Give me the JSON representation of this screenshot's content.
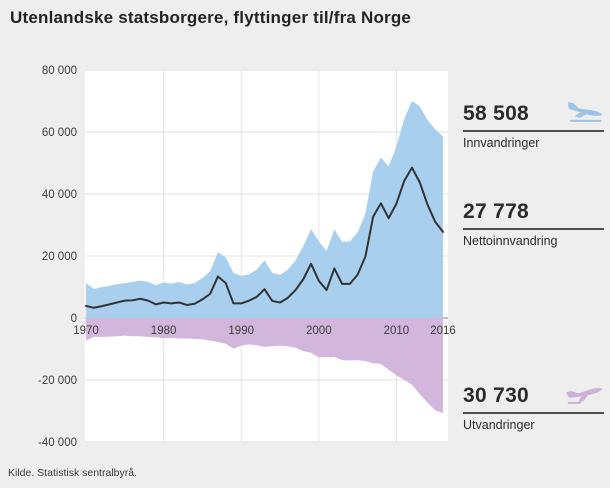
{
  "page": {
    "title": "Utenlandske statsborgere, flyttinger til/fra Norge",
    "source": "Kilde. Statistisk sentralbyrå."
  },
  "stats": {
    "immigration": {
      "value": "58 508",
      "label": "Innvandringer",
      "icon": "plane-landing-icon",
      "icon_color": "#9cc3e5"
    },
    "net": {
      "value": "27 778",
      "label": "Nettoinnvandring"
    },
    "emigration": {
      "value": "30 730",
      "label": "Utvandringer",
      "icon": "plane-takeoff-icon",
      "icon_color": "#cbb0d8"
    }
  },
  "chart_data": {
    "type": "area",
    "title": "Utenlandske statsborgere, flyttinger til/fra Norge",
    "xlabel": "",
    "ylabel": "",
    "ylim": [
      -40000,
      80000
    ],
    "grid": true,
    "legend_position": "right-panel",
    "x": [
      1970,
      1971,
      1972,
      1973,
      1974,
      1975,
      1976,
      1977,
      1978,
      1979,
      1980,
      1981,
      1982,
      1983,
      1984,
      1985,
      1986,
      1987,
      1988,
      1989,
      1990,
      1991,
      1992,
      1993,
      1994,
      1995,
      1996,
      1997,
      1998,
      1999,
      2000,
      2001,
      2002,
      2003,
      2004,
      2005,
      2006,
      2007,
      2008,
      2009,
      2010,
      2011,
      2012,
      2013,
      2014,
      2015,
      2016
    ],
    "series": [
      {
        "name": "Innvandringer",
        "type": "area",
        "color": "#a9cfee",
        "direction": "above-zero",
        "values": [
          11200,
          9400,
          9900,
          10400,
          10900,
          11300,
          11600,
          12100,
          11700,
          10600,
          11500,
          11100,
          11600,
          10800,
          11300,
          12900,
          15100,
          21200,
          19600,
          14600,
          13600,
          14100,
          15600,
          18600,
          14600,
          13900,
          15600,
          18600,
          23200,
          28700,
          24700,
          21600,
          28600,
          24600,
          24700,
          27600,
          33700,
          47300,
          51800,
          48900,
          55400,
          64200,
          70000,
          68300,
          63900,
          60800,
          58508
        ]
      },
      {
        "name": "Utvandringer",
        "type": "area",
        "color": "#d2b6dc",
        "direction": "below-zero",
        "values": [
          7300,
          6100,
          6100,
          6000,
          5900,
          5700,
          5900,
          5900,
          6100,
          6200,
          6500,
          6400,
          6600,
          6600,
          6700,
          6900,
          7300,
          7800,
          8300,
          9900,
          8900,
          8500,
          8800,
          9300,
          9100,
          8900,
          9100,
          9600,
          10700,
          11200,
          12700,
          12600,
          12600,
          13600,
          13700,
          13600,
          13900,
          14600,
          14800,
          16700,
          18500,
          20000,
          21500,
          24500,
          27300,
          29800,
          30730
        ]
      },
      {
        "name": "Nettoinnvandring",
        "type": "line",
        "color": "#333333",
        "direction": "above-zero",
        "values": [
          3900,
          3300,
          3800,
          4400,
          5000,
          5600,
          5700,
          6200,
          5600,
          4400,
          5000,
          4700,
          5000,
          4200,
          4600,
          6000,
          7800,
          13400,
          11300,
          4700,
          4700,
          5600,
          6800,
          9300,
          5500,
          5000,
          6500,
          9000,
          12500,
          17500,
          12000,
          9000,
          16000,
          11000,
          11000,
          14000,
          19800,
          32700,
          37000,
          32200,
          36900,
          44200,
          48500,
          43800,
          36600,
          31000,
          27778
        ]
      }
    ],
    "y_ticks": [
      {
        "value": 80000,
        "label": "80 000"
      },
      {
        "value": 60000,
        "label": "60 000"
      },
      {
        "value": 40000,
        "label": "40 000"
      },
      {
        "value": 20000,
        "label": "20 000"
      },
      {
        "value": 0,
        "label": "0"
      },
      {
        "value": -20000,
        "label": "-20 000"
      },
      {
        "value": -40000,
        "label": "-40 000"
      }
    ],
    "x_ticks": [
      {
        "value": 1970,
        "label": "1970",
        "grid": false
      },
      {
        "value": 1980,
        "label": "1980",
        "grid": true
      },
      {
        "value": 1990,
        "label": "1990",
        "grid": true
      },
      {
        "value": 2000,
        "label": "2000",
        "grid": true
      },
      {
        "value": 2010,
        "label": "2010",
        "grid": true
      },
      {
        "value": 2016,
        "label": "2016",
        "grid": false
      }
    ]
  }
}
